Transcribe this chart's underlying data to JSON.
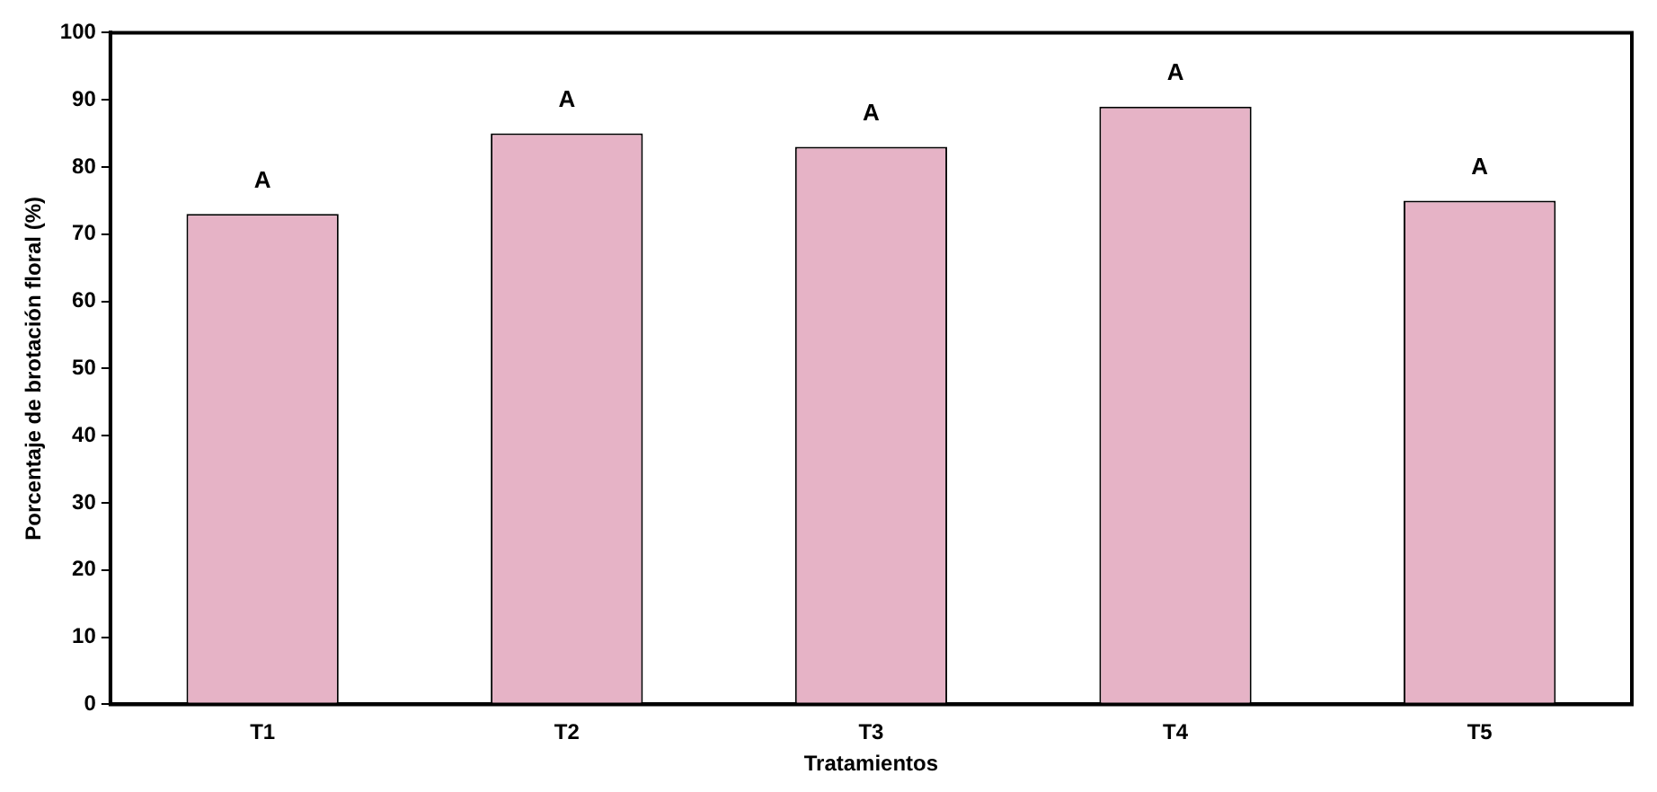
{
  "chart_data": {
    "type": "bar",
    "xlabel": "Tratamientos",
    "ylabel": "Porcentaje de brotación floral (%)",
    "categories": [
      "T1",
      "T2",
      "T3",
      "T4",
      "T5"
    ],
    "values": [
      73,
      85,
      83,
      89,
      75
    ],
    "color": "#e6b3c6",
    "ylim": [
      0,
      100
    ],
    "yticks": [
      0,
      10,
      20,
      30,
      40,
      50,
      60,
      70,
      80,
      90,
      100
    ],
    "grid": false,
    "annotations": [
      {
        "text": "A",
        "x": "T1",
        "y": 73
      },
      {
        "text": "A",
        "x": "T2",
        "y": 85
      },
      {
        "text": "A",
        "x": "T3",
        "y": 83
      },
      {
        "text": "A",
        "x": "T4",
        "y": 89
      },
      {
        "text": "A",
        "x": "T5",
        "y": 75
      }
    ]
  }
}
